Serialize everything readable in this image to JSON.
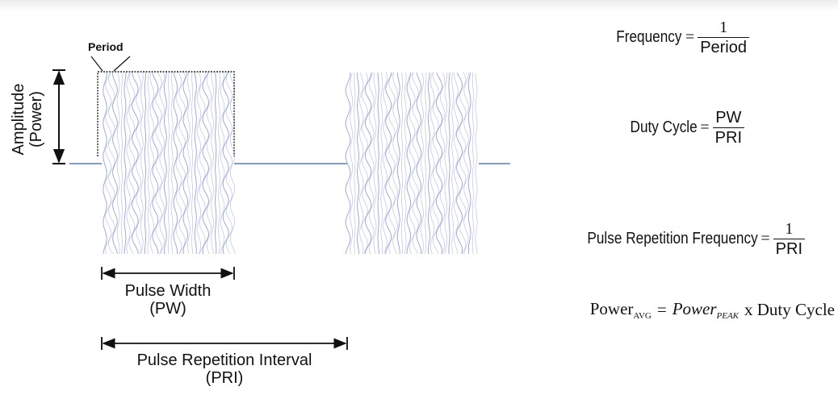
{
  "colors": {
    "baseline": "#5a7fb0",
    "pulse": "#a9b5df",
    "pulse_dark": "#7d8cc8",
    "arrow": "#111111"
  },
  "labels": {
    "period": "Period",
    "amplitude": "Amplitude",
    "amplitude_sub": "(Power)",
    "pulse_width": "Pulse Width",
    "pulse_width_abbr": "(PW)",
    "pri": "Pulse Repetition Interval",
    "pri_abbr": "(PRI)"
  },
  "formulas": {
    "frequency": {
      "name": "Frequency",
      "eq": "=",
      "num": "1",
      "den": "Period"
    },
    "duty_cycle": {
      "name": "Duty Cycle",
      "eq": "=",
      "num": "PW",
      "den": "PRI"
    },
    "prf": {
      "name": "Pulse Repetition Frequency",
      "eq": "=",
      "num": "1",
      "den": "PRI"
    },
    "power_avg": {
      "lhs": "Power",
      "lhs_sub": "AVG",
      "eq": "=",
      "rhs": "Power",
      "rhs_sub": "PEAK",
      "tail": "x Duty Cycle"
    }
  }
}
